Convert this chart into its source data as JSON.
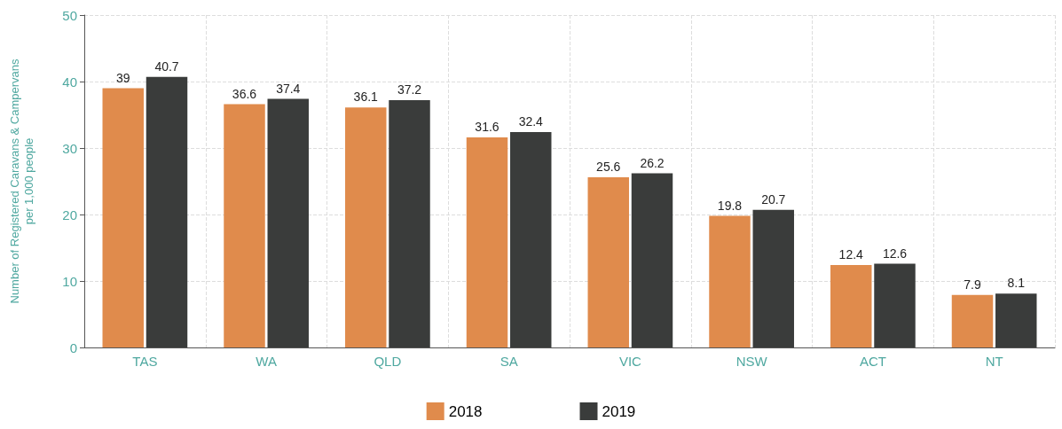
{
  "chart_data": {
    "type": "bar",
    "ylabel": "Number of Registered Caravans & Campervans\nper 1,000 people",
    "categories": [
      "TAS",
      "WA",
      "QLD",
      "SA",
      "VIC",
      "NSW",
      "ACT",
      "NT"
    ],
    "series": [
      {
        "name": "2018",
        "color": "#e08b4c",
        "values": [
          39,
          36.6,
          36.1,
          31.6,
          25.6,
          19.8,
          12.4,
          7.9
        ]
      },
      {
        "name": "2019",
        "color": "#3a3c3b",
        "values": [
          40.7,
          37.4,
          37.2,
          32.4,
          26.2,
          20.7,
          12.6,
          8.1
        ]
      }
    ],
    "ylim": [
      0,
      50
    ],
    "yticks": [
      0,
      10,
      20,
      30,
      40,
      50
    ],
    "grid": true,
    "legend": "bottom",
    "data_labels": true
  }
}
